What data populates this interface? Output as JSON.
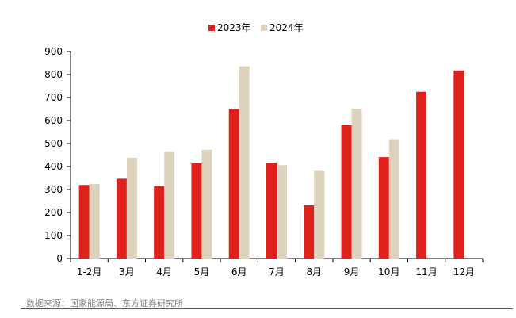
{
  "chart_data": {
    "type": "bar",
    "categories": [
      "1-2月",
      "3月",
      "4月",
      "5月",
      "6月",
      "7月",
      "8月",
      "9月",
      "10月",
      "11月",
      "12月"
    ],
    "series": [
      {
        "name": "2023年",
        "color": "#e0201a",
        "values": [
          320,
          347,
          315,
          414,
          650,
          416,
          231,
          580,
          441,
          725,
          818
        ]
      },
      {
        "name": "2024年",
        "color": "#ddd3bd",
        "values": [
          324,
          438,
          463,
          473,
          836,
          406,
          381,
          651,
          519,
          null,
          null
        ]
      }
    ],
    "yticks": [
      0,
      100,
      200,
      300,
      400,
      500,
      600,
      700,
      800,
      900
    ],
    "ylim": [
      0,
      900
    ],
    "grid": false,
    "legend": "top-center"
  },
  "source": "数据来源：国家能源局、东方证券研究所"
}
